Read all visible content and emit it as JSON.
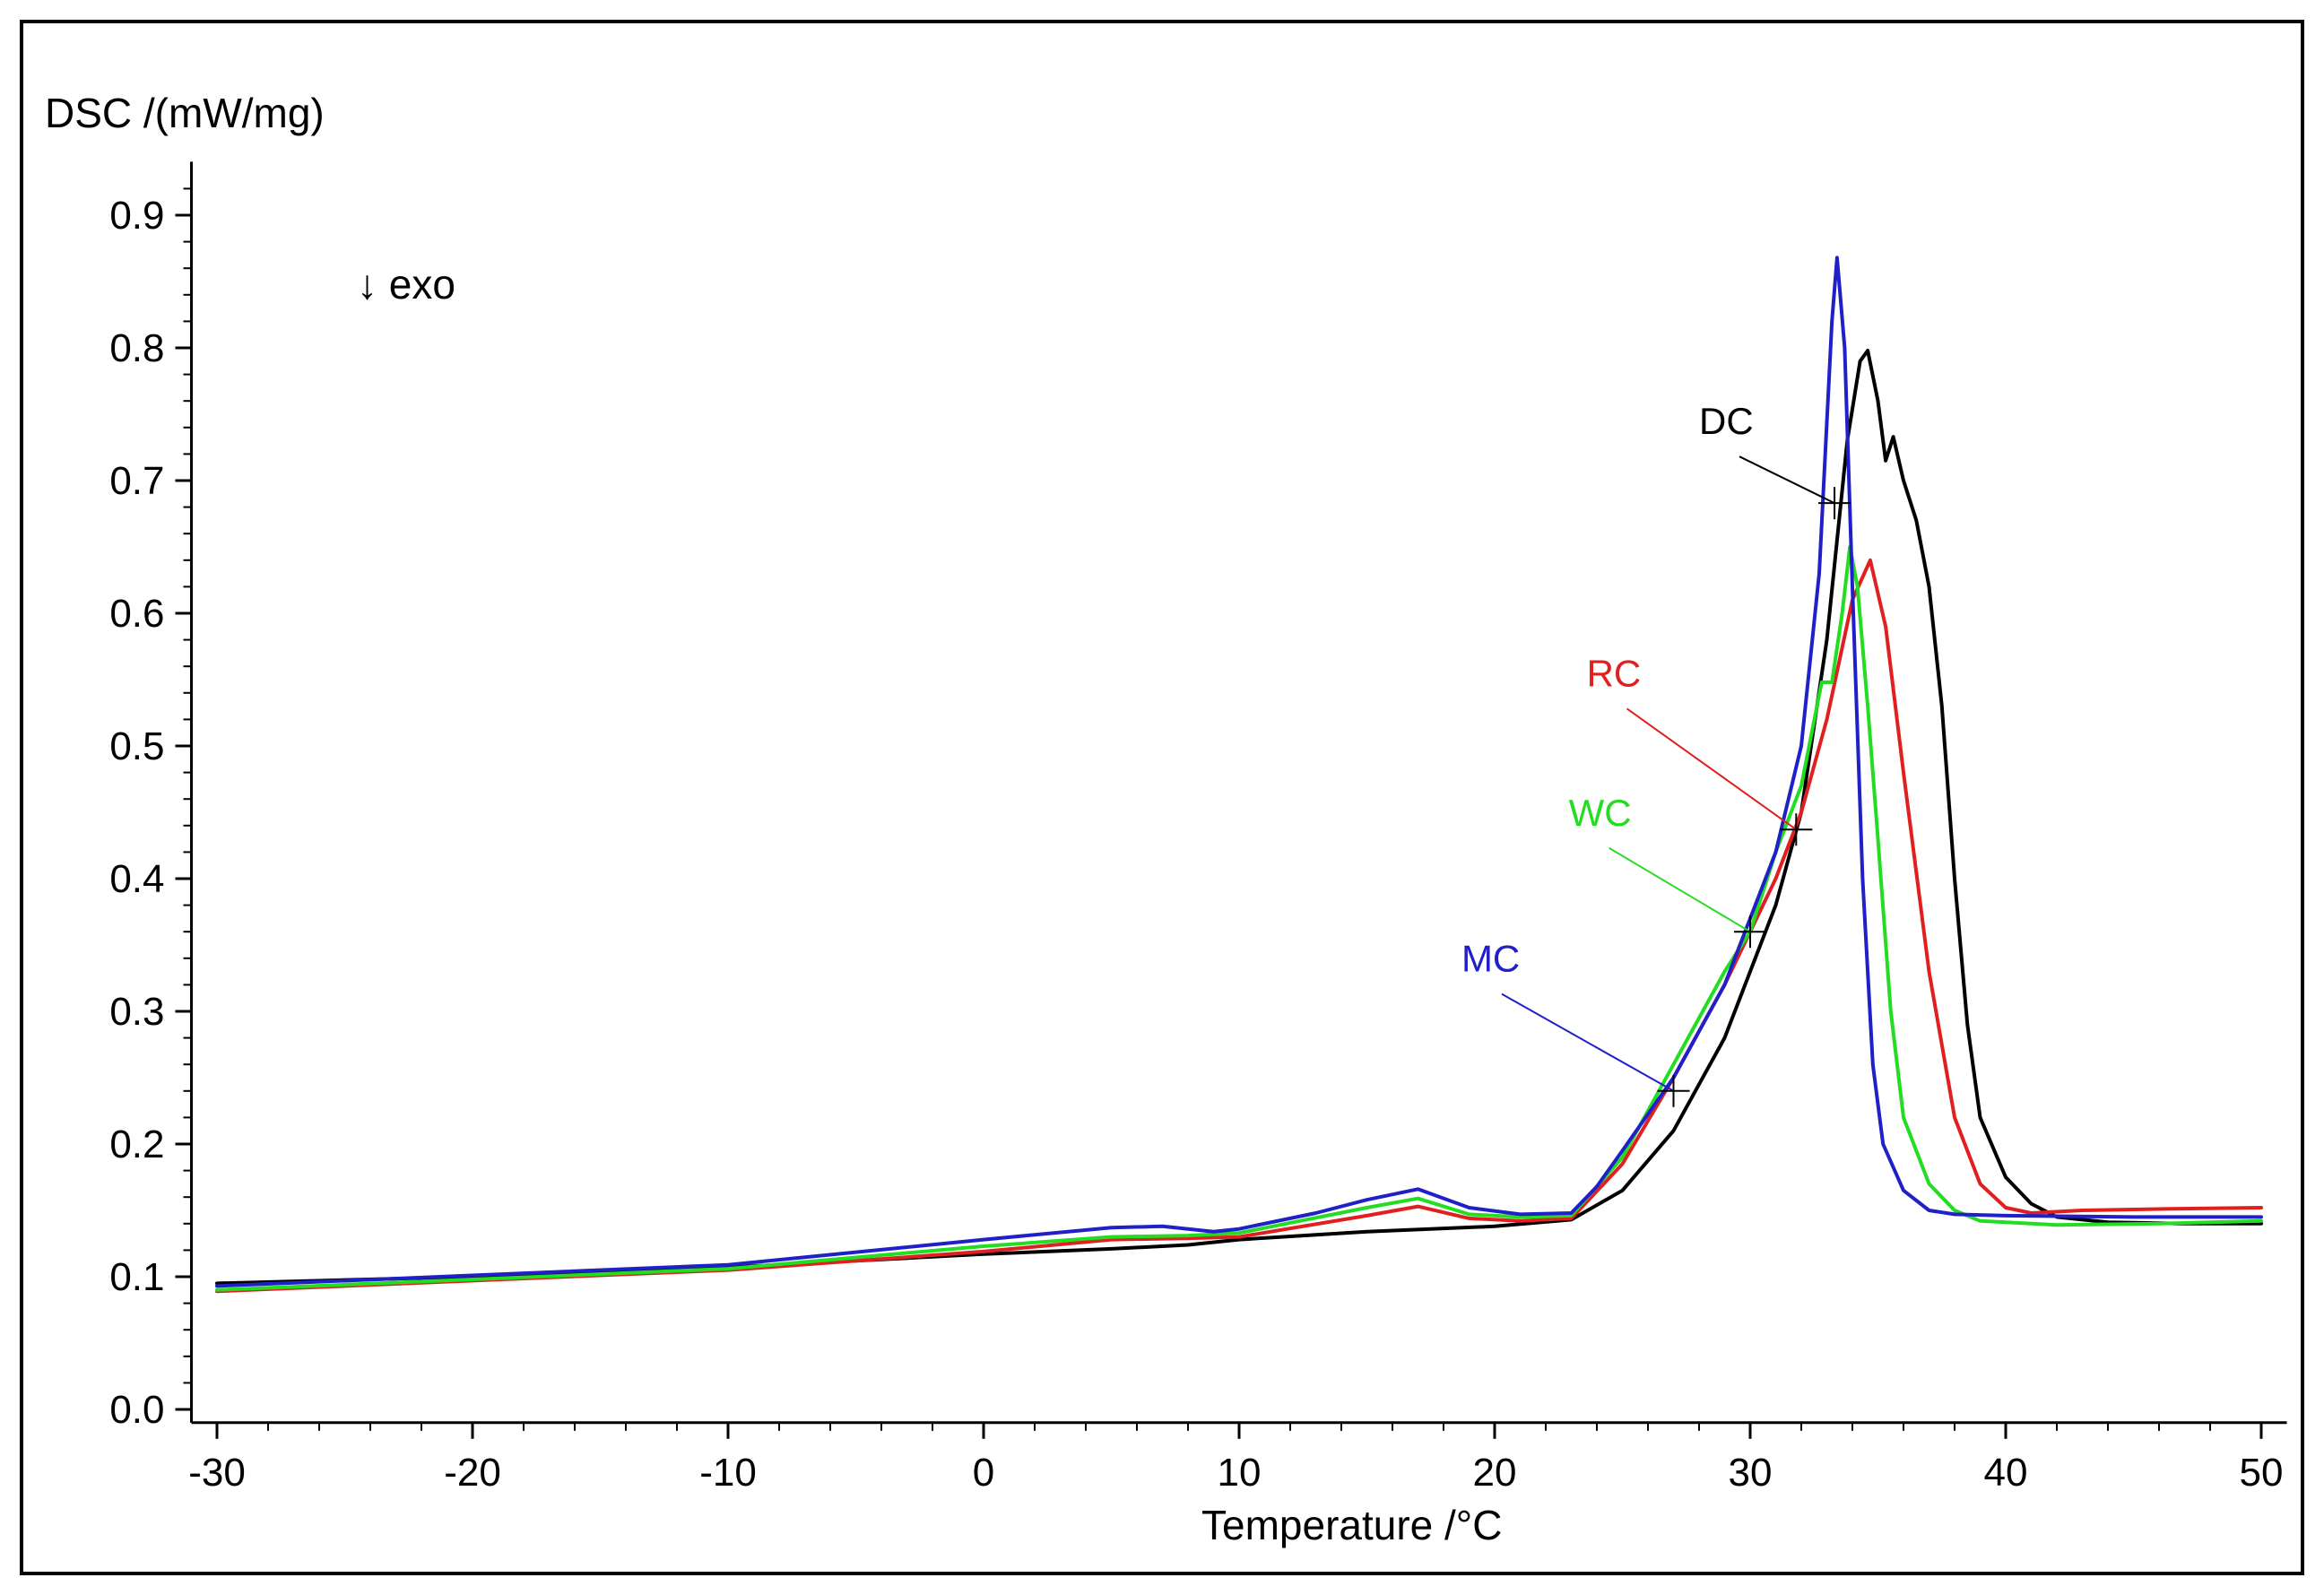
{
  "chart_data": {
    "type": "line",
    "title": "",
    "xlabel": "Temperature /°C",
    "ylabel": "DSC /(mW/mg)",
    "annotation": "↓ exo",
    "xlim": [
      -31,
      51
    ],
    "ylim": [
      -0.01,
      0.92
    ],
    "xticks": [
      -30,
      -20,
      -10,
      0,
      10,
      20,
      30,
      40,
      50
    ],
    "xtick_labels": [
      "-30",
      "-20",
      "-10",
      "0",
      "10",
      "20",
      "30",
      "40",
      "50"
    ],
    "yticks": [
      0.0,
      0.1,
      0.2,
      0.3,
      0.4,
      0.5,
      0.6,
      0.7,
      0.8,
      0.9
    ],
    "ytick_labels": [
      "0.0",
      "0.1",
      "0.2",
      "0.3",
      "0.4",
      "0.5",
      "0.6",
      "0.7",
      "0.8",
      "0.9"
    ],
    "grid": false,
    "series": [
      {
        "name": "DC",
        "color": "#000000",
        "label_pos": [
          28.0,
          0.735
        ],
        "onset": [
          33.3,
          0.683
        ],
        "points": [
          [
            -30,
            0.095
          ],
          [
            -20,
            0.1
          ],
          [
            -10,
            0.107
          ],
          [
            0,
            0.117
          ],
          [
            5,
            0.121
          ],
          [
            8,
            0.124
          ],
          [
            10,
            0.128
          ],
          [
            15,
            0.134
          ],
          [
            20,
            0.138
          ],
          [
            23,
            0.143
          ],
          [
            25,
            0.165
          ],
          [
            27,
            0.21
          ],
          [
            29,
            0.28
          ],
          [
            31,
            0.38
          ],
          [
            32,
            0.45
          ],
          [
            33,
            0.58
          ],
          [
            33.8,
            0.73
          ],
          [
            34.3,
            0.79
          ],
          [
            34.6,
            0.798
          ],
          [
            35,
            0.76
          ],
          [
            35.3,
            0.715
          ],
          [
            35.6,
            0.733
          ],
          [
            36,
            0.7
          ],
          [
            36.5,
            0.67
          ],
          [
            37,
            0.62
          ],
          [
            37.5,
            0.53
          ],
          [
            38,
            0.4
          ],
          [
            38.5,
            0.29
          ],
          [
            39,
            0.22
          ],
          [
            40,
            0.175
          ],
          [
            41,
            0.155
          ],
          [
            42,
            0.145
          ],
          [
            44,
            0.141
          ],
          [
            47,
            0.14
          ],
          [
            50,
            0.14
          ]
        ]
      },
      {
        "name": "RC",
        "color": "#e02020",
        "label_pos": [
          23.6,
          0.545
        ],
        "onset": [
          31.8,
          0.437
        ],
        "points": [
          [
            -30,
            0.089
          ],
          [
            -20,
            0.097
          ],
          [
            -10,
            0.105
          ],
          [
            0,
            0.119
          ],
          [
            5,
            0.128
          ],
          [
            8,
            0.129
          ],
          [
            10,
            0.13
          ],
          [
            15,
            0.146
          ],
          [
            17,
            0.153
          ],
          [
            19,
            0.144
          ],
          [
            21,
            0.142
          ],
          [
            23,
            0.144
          ],
          [
            25,
            0.185
          ],
          [
            27,
            0.25
          ],
          [
            29,
            0.32
          ],
          [
            31,
            0.4
          ],
          [
            32,
            0.45
          ],
          [
            33,
            0.52
          ],
          [
            34,
            0.61
          ],
          [
            34.7,
            0.64
          ],
          [
            35.3,
            0.59
          ],
          [
            36,
            0.48
          ],
          [
            37,
            0.33
          ],
          [
            38,
            0.22
          ],
          [
            39,
            0.17
          ],
          [
            40,
            0.152
          ],
          [
            41,
            0.148
          ],
          [
            43,
            0.15
          ],
          [
            46,
            0.151
          ],
          [
            50,
            0.152
          ]
        ]
      },
      {
        "name": "WC",
        "color": "#22dd22",
        "label_pos": [
          22.9,
          0.44
        ],
        "onset": [
          30.0,
          0.36
        ],
        "points": [
          [
            -30,
            0.09
          ],
          [
            -20,
            0.098
          ],
          [
            -10,
            0.106
          ],
          [
            0,
            0.123
          ],
          [
            5,
            0.13
          ],
          [
            8,
            0.131
          ],
          [
            10,
            0.133
          ],
          [
            15,
            0.152
          ],
          [
            17,
            0.159
          ],
          [
            19,
            0.147
          ],
          [
            21,
            0.145
          ],
          [
            23,
            0.146
          ],
          [
            25,
            0.19
          ],
          [
            27,
            0.26
          ],
          [
            29,
            0.33
          ],
          [
            30,
            0.36
          ],
          [
            31,
            0.42
          ],
          [
            32,
            0.47
          ],
          [
            32.8,
            0.548
          ],
          [
            33.2,
            0.548
          ],
          [
            33.6,
            0.6
          ],
          [
            33.9,
            0.65
          ],
          [
            34.2,
            0.62
          ],
          [
            34.6,
            0.53
          ],
          [
            35,
            0.43
          ],
          [
            35.5,
            0.3
          ],
          [
            36,
            0.22
          ],
          [
            37,
            0.17
          ],
          [
            38,
            0.15
          ],
          [
            39,
            0.142
          ],
          [
            42,
            0.139
          ],
          [
            46,
            0.14
          ],
          [
            50,
            0.142
          ]
        ]
      },
      {
        "name": "MC",
        "color": "#2020c8",
        "label_pos": [
          18.7,
          0.33
        ],
        "onset": [
          27.0,
          0.24
        ],
        "points": [
          [
            -30,
            0.093
          ],
          [
            -20,
            0.101
          ],
          [
            -10,
            0.109
          ],
          [
            0,
            0.128
          ],
          [
            5,
            0.137
          ],
          [
            7,
            0.138
          ],
          [
            9,
            0.134
          ],
          [
            10,
            0.136
          ],
          [
            13,
            0.148
          ],
          [
            15,
            0.158
          ],
          [
            17,
            0.166
          ],
          [
            19,
            0.152
          ],
          [
            21,
            0.147
          ],
          [
            23,
            0.148
          ],
          [
            24,
            0.168
          ],
          [
            25,
            0.195
          ],
          [
            27,
            0.25
          ],
          [
            29,
            0.32
          ],
          [
            31,
            0.42
          ],
          [
            32,
            0.5
          ],
          [
            32.7,
            0.63
          ],
          [
            33.2,
            0.82
          ],
          [
            33.4,
            0.868
          ],
          [
            33.7,
            0.8
          ],
          [
            34,
            0.62
          ],
          [
            34.4,
            0.4
          ],
          [
            34.8,
            0.26
          ],
          [
            35.2,
            0.2
          ],
          [
            36,
            0.165
          ],
          [
            37,
            0.15
          ],
          [
            38,
            0.147
          ],
          [
            40,
            0.146
          ],
          [
            45,
            0.145
          ],
          [
            50,
            0.145
          ]
        ]
      }
    ]
  }
}
